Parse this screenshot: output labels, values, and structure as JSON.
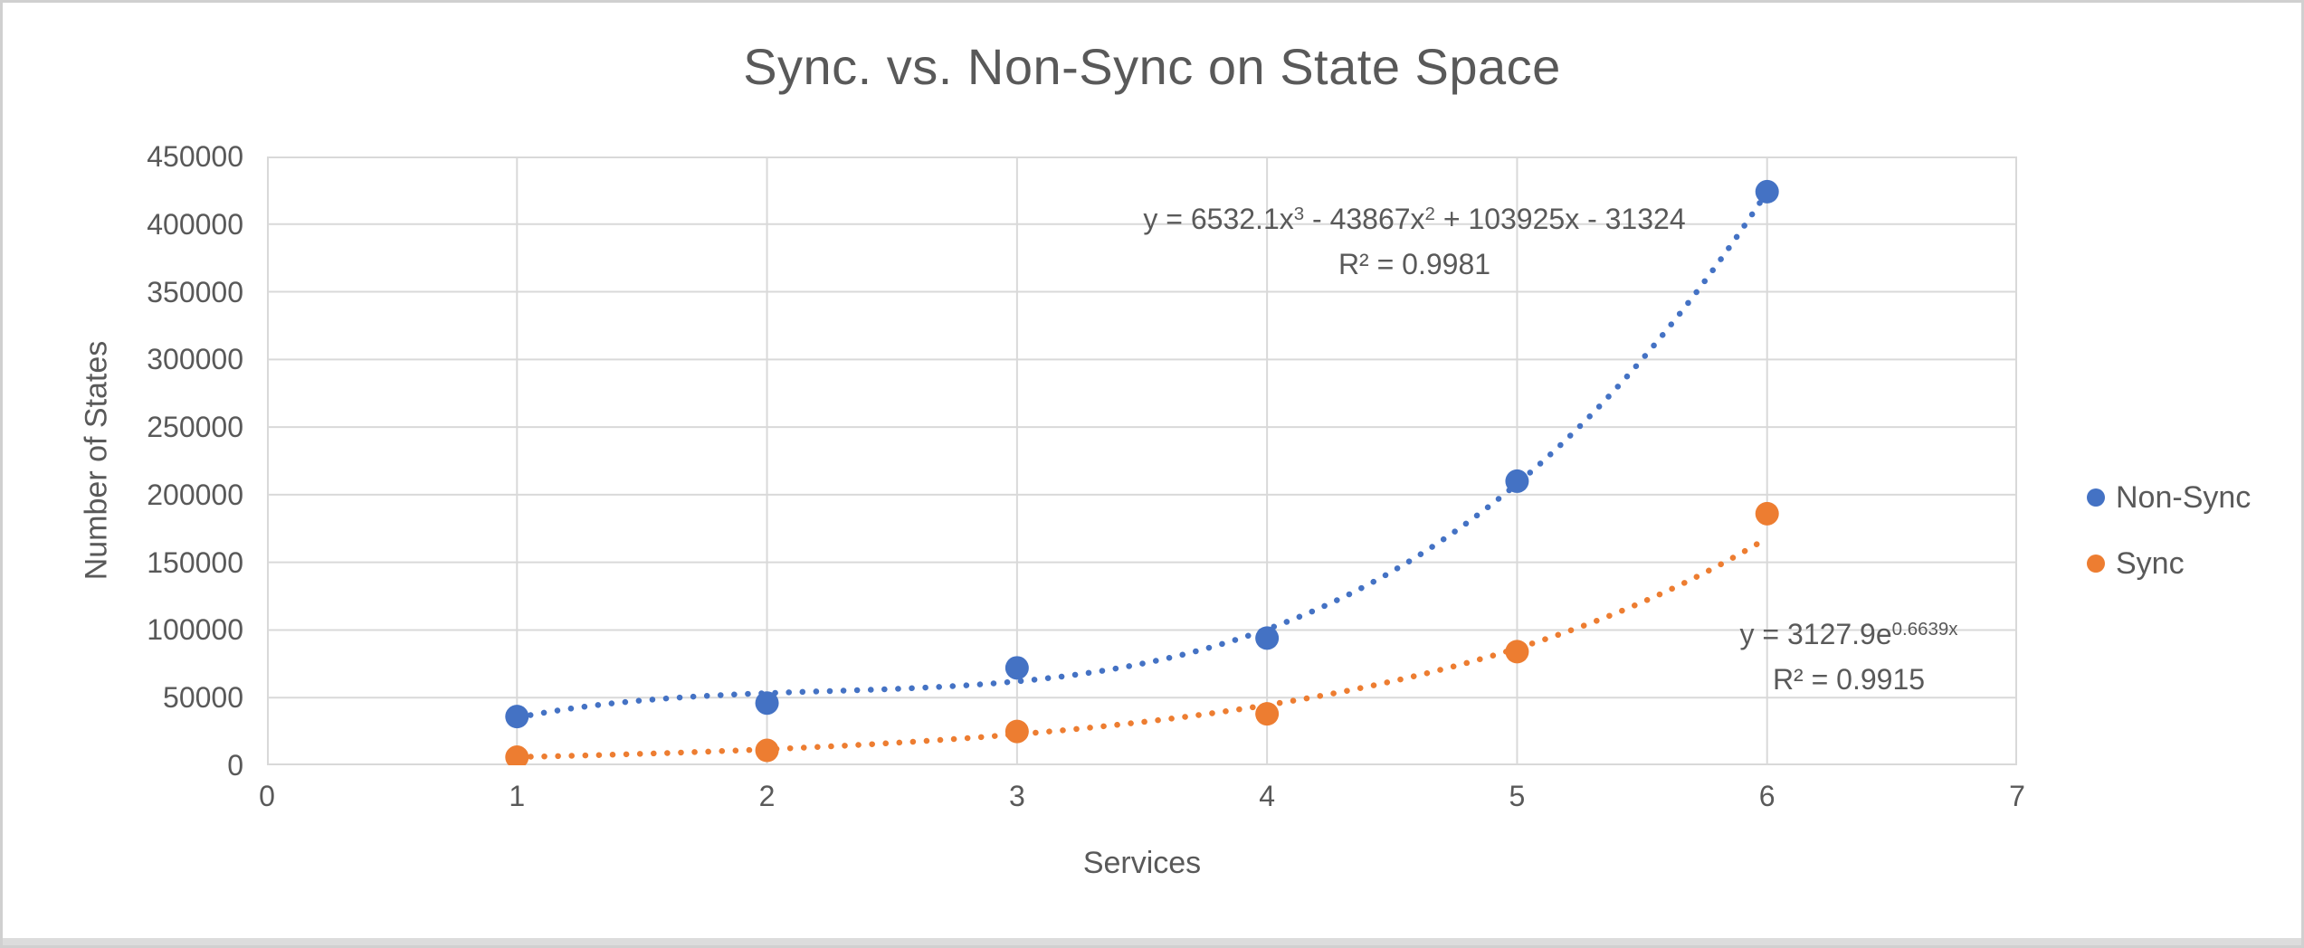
{
  "chart_data": {
    "type": "scatter",
    "title": "Sync. vs. Non-Sync on State Space",
    "xlabel": "Services",
    "ylabel": "Number of States",
    "xlim": [
      0,
      7
    ],
    "ylim": [
      0,
      450000
    ],
    "x_tick_labels": [
      "0",
      "1",
      "2",
      "3",
      "4",
      "5",
      "6",
      "7"
    ],
    "y_tick_labels": [
      "0",
      "50000",
      "100000",
      "150000",
      "200000",
      "250000",
      "300000",
      "350000",
      "400000",
      "450000"
    ],
    "grid": true,
    "legend_position": "right",
    "marker_style": "filled-circle",
    "trendline_style": "dotted",
    "colors": {
      "text": "#595959",
      "gridline": "#D9D9D9",
      "plot_border": "#D9D9D9"
    },
    "series": [
      {
        "name": "Non-Sync",
        "color": "#4472C4",
        "x": [
          1,
          2,
          3,
          4,
          5,
          6
        ],
        "y": [
          36000,
          46000,
          72000,
          94000,
          210000,
          424000
        ],
        "trendline": {
          "kind": "polynomial",
          "degree": 3,
          "coefficients": [
            6532.1,
            -43867,
            103925,
            -31324
          ],
          "range": [
            1,
            6
          ],
          "equation_segments": [
            {
              "text": "y = 6532.1x"
            },
            {
              "text": "3",
              "sup": true
            },
            {
              "text": " - 43867x"
            },
            {
              "text": "2",
              "sup": true
            },
            {
              "text": " + 103925x - 31324"
            }
          ],
          "r2": "R² = 0.9981"
        }
      },
      {
        "name": "Sync",
        "color": "#ED7D31",
        "x": [
          1,
          2,
          3,
          4,
          5,
          6
        ],
        "y": [
          6000,
          11000,
          25000,
          38000,
          84000,
          186000
        ],
        "trendline": {
          "kind": "exponential",
          "a": 3127.9,
          "b": 0.6639,
          "range": [
            1,
            6
          ],
          "equation_segments": [
            {
              "text": "y = 3127.9e"
            },
            {
              "text": "0.6639x",
              "sup": true
            }
          ],
          "r2": "R² = 0.9915"
        }
      }
    ]
  }
}
